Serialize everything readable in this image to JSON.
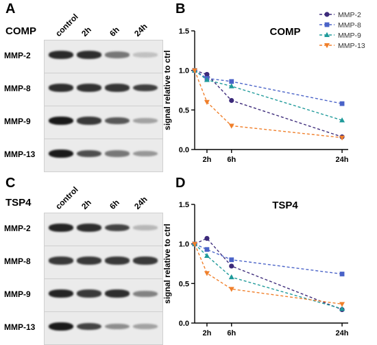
{
  "panels": {
    "a": {
      "letter": "A",
      "title": "COMP",
      "lanes": [
        "control",
        "2h",
        "6h",
        "24h"
      ],
      "blots": [
        {
          "label": "MMP-2",
          "levels": [
            0.92,
            0.9,
            0.55,
            0.2
          ]
        },
        {
          "label": "MMP-8",
          "levels": [
            0.9,
            0.88,
            0.86,
            0.82
          ]
        },
        {
          "label": "MMP-9",
          "levels": [
            1.0,
            0.85,
            0.7,
            0.35
          ]
        },
        {
          "label": "MMP-13",
          "levels": [
            1.0,
            0.75,
            0.55,
            0.4
          ]
        }
      ]
    },
    "c": {
      "letter": "C",
      "title": "TSP4",
      "lanes": [
        "control",
        "2h",
        "6h",
        "24h"
      ],
      "blots": [
        {
          "label": "MMP-2",
          "levels": [
            0.95,
            0.9,
            0.8,
            0.25
          ]
        },
        {
          "label": "MMP-8",
          "levels": [
            0.85,
            0.85,
            0.85,
            0.85
          ]
        },
        {
          "label": "MMP-9",
          "levels": [
            0.95,
            0.85,
            0.9,
            0.5
          ]
        },
        {
          "label": "MMP-13",
          "levels": [
            1.0,
            0.8,
            0.45,
            0.35
          ]
        }
      ]
    },
    "b": {
      "letter": "B"
    },
    "d": {
      "letter": "D"
    }
  },
  "chart_data": [
    {
      "type": "line",
      "title": "COMP",
      "xlabel": "",
      "ylabel": "signal relative to ctrl",
      "x": [
        0,
        2,
        6,
        24
      ],
      "x_tick_labels": [
        "2h",
        "6h",
        "24h"
      ],
      "x_ticks": [
        2,
        6,
        24
      ],
      "ylim": [
        0,
        1.5
      ],
      "y_ticks": [
        "0.0",
        "0.5",
        "1.0",
        "1.5"
      ],
      "legend": "top-right",
      "grid": false,
      "series": [
        {
          "name": "MMP-2",
          "color": "#3c2a7a",
          "marker": "circle",
          "values": [
            1.0,
            0.95,
            0.62,
            0.16
          ]
        },
        {
          "name": "MMP-8",
          "color": "#4a63c8",
          "marker": "square",
          "values": [
            1.0,
            0.9,
            0.86,
            0.58
          ]
        },
        {
          "name": "MMP-9",
          "color": "#1f9a9a",
          "marker": "triangle",
          "values": [
            1.0,
            0.88,
            0.8,
            0.37
          ]
        },
        {
          "name": "MMP-13",
          "color": "#f07f2a",
          "marker": "triangle-down",
          "values": [
            1.0,
            0.6,
            0.3,
            0.15
          ]
        }
      ]
    },
    {
      "type": "line",
      "title": "TSP4",
      "xlabel": "",
      "ylabel": "signal relative to ctrl",
      "x": [
        0,
        2,
        6,
        24
      ],
      "x_tick_labels": [
        "2h",
        "6h",
        "24h"
      ],
      "x_ticks": [
        2,
        6,
        24
      ],
      "ylim": [
        0,
        1.5
      ],
      "y_ticks": [
        "0.0",
        "0.5",
        "1.0",
        "1.5"
      ],
      "grid": false,
      "series": [
        {
          "name": "MMP-2",
          "color": "#3c2a7a",
          "marker": "circle",
          "values": [
            1.0,
            1.07,
            0.72,
            0.17
          ]
        },
        {
          "name": "MMP-8",
          "color": "#4a63c8",
          "marker": "square",
          "values": [
            1.0,
            0.93,
            0.8,
            0.62
          ]
        },
        {
          "name": "MMP-9",
          "color": "#1f9a9a",
          "marker": "triangle",
          "values": [
            1.0,
            0.85,
            0.58,
            0.18
          ]
        },
        {
          "name": "MMP-13",
          "color": "#f07f2a",
          "marker": "triangle-down",
          "values": [
            1.0,
            0.63,
            0.43,
            0.24
          ]
        }
      ]
    }
  ]
}
